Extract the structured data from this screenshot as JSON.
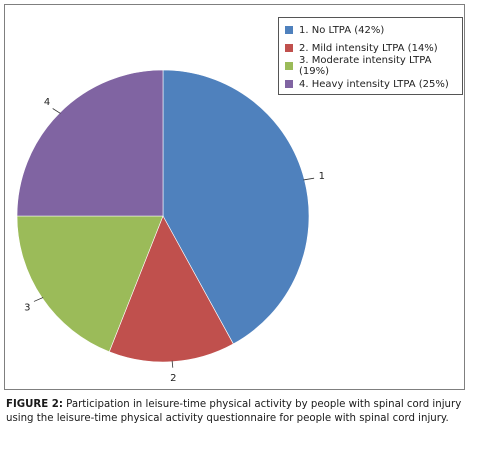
{
  "chart_data": {
    "type": "pie",
    "categories": [
      "1. No LTPA (42%)",
      "2. Mild intensity LTPA (14%)",
      "3. Moderate intensity LTPA (19%)",
      "4. Heavy intensity LTPA (25%)"
    ],
    "values": [
      42,
      14,
      19,
      25
    ],
    "slice_labels": [
      "1",
      "2",
      "3",
      "4"
    ],
    "colors": [
      "#4f81bd",
      "#c0504d",
      "#9bbb59",
      "#8064a2"
    ],
    "legend_position": "top-right",
    "start": "12 o'clock",
    "direction": "clockwise"
  },
  "caption": {
    "label": "FIGURE 2:",
    "text": " Participation in leisure-time physical activity by people with spinal cord injury using the leisure-time physical activity questionnaire for people with spinal cord injury."
  }
}
